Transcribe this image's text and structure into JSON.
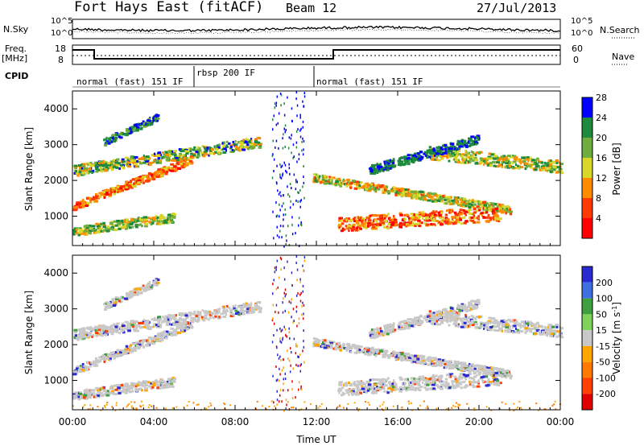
{
  "header": {
    "station": "Fort Hays East (fitACF)",
    "beam": "Beam 12",
    "date": "27/Jul/2013"
  },
  "side_labels": {
    "n_sky": "N.Sky",
    "freq": "Freq.",
    "mhz": "[MHz]",
    "cpid": "CPID",
    "n_search": "N.Search",
    "nave": "Nave"
  },
  "noise_ticks": [
    "10^5",
    "10^0"
  ],
  "freq_ticks": [
    "18",
    "8"
  ],
  "nave_ticks": [
    "60",
    "0"
  ],
  "cpid_segments": [
    {
      "label": "normal (fast) 151 IF",
      "start_hr": 0,
      "end_hr": 6
    },
    {
      "label": "rbsp 200 IF",
      "start_hr": 6,
      "end_hr": 11.5
    },
    {
      "label": "normal (fast) 151 IF",
      "start_hr": 11.5,
      "end_hr": 24
    }
  ],
  "chart_data": [
    {
      "type": "heatmap",
      "title": "Power",
      "xlabel": "Time UT",
      "ylabel": "Slant Range [km]",
      "xlim": [
        0,
        24
      ],
      "ylim": [
        180,
        4500
      ],
      "x_ticks": [
        "00:00",
        "04:00",
        "08:00",
        "12:00",
        "16:00",
        "20:00",
        "00:00"
      ],
      "y_ticks": [
        1000,
        2000,
        3000,
        4000
      ],
      "colorbar": {
        "label": "Power [dB]",
        "ticks": [
          4,
          8,
          12,
          16,
          20,
          24,
          28
        ],
        "colors": [
          "#0000ff",
          "#1e8a3c",
          "#6fae3e",
          "#d7d72a",
          "#ff8c00",
          "#ff3a00",
          "#ff0000"
        ]
      }
    },
    {
      "type": "heatmap",
      "title": "Velocity",
      "xlabel": "Time UT",
      "ylabel": "Slant Range [km]",
      "xlim": [
        0,
        24
      ],
      "ylim": [
        180,
        4500
      ],
      "x_ticks": [
        "00:00",
        "04:00",
        "08:00",
        "12:00",
        "16:00",
        "20:00",
        "00:00"
      ],
      "y_ticks": [
        1000,
        2000,
        3000,
        4000
      ],
      "colorbar": {
        "label_main": "Velocity [m s",
        "label_sup": "-1",
        "label_end": "]",
        "ticks": [
          200,
          100,
          50,
          15,
          -15,
          -50,
          -100,
          -200
        ],
        "colors": [
          "#2a2ad0",
          "#3f6fe0",
          "#3fa03f",
          "#7fd35a",
          "#c8c8c8",
          "#ffa500",
          "#ff7a00",
          "#ff4000",
          "#e00000"
        ]
      }
    }
  ]
}
